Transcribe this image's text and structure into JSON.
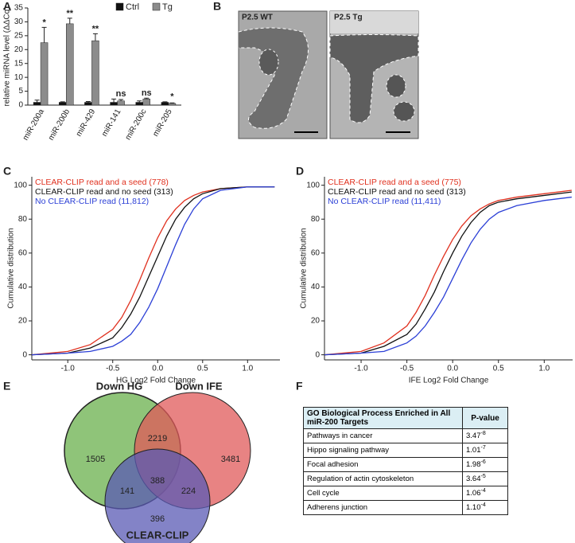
{
  "panel_labels": [
    "A",
    "B",
    "C",
    "D",
    "E",
    "F"
  ],
  "chart_data": [
    {
      "type": "bar",
      "ylabel": "relative miRNA level (ΔΔCq)",
      "categories": [
        "miR-200a",
        "miR-200b",
        "miR-429",
        "miR-141",
        "miR-200c",
        "miR-205"
      ],
      "series": [
        {
          "name": "Ctrl",
          "color": "#111111",
          "values": [
            1,
            1,
            1,
            1,
            1,
            1
          ],
          "errors": [
            0.8,
            0.2,
            0.3,
            1.2,
            0.5,
            0.2
          ]
        },
        {
          "name": "Tg",
          "color": "#8c8c8c",
          "values": [
            22.5,
            29.3,
            23.2,
            1.5,
            2.2,
            0.6
          ],
          "errors": [
            5.5,
            2,
            2.5,
            0.5,
            0.3,
            0.2
          ]
        }
      ],
      "annotations": [
        "*",
        "**",
        "**",
        "ns",
        "ns",
        "*"
      ],
      "ylim": [
        0,
        35
      ],
      "yticks": [
        0,
        5,
        10,
        15,
        20,
        25,
        30,
        35
      ]
    },
    {
      "type": "line",
      "xlabel": "HG Log2 Fold Change",
      "ylabel": "Cumulative distribution",
      "x": [
        -1.4,
        -1.0,
        -0.75,
        -0.5,
        -0.4,
        -0.3,
        -0.2,
        -0.1,
        0,
        0.1,
        0.2,
        0.3,
        0.4,
        0.5,
        0.7,
        1.0,
        1.3
      ],
      "series": [
        {
          "name": "CLEAR-CLIP read and a seed (778)",
          "color": "#e0301e",
          "values": [
            0,
            2,
            6,
            15,
            22,
            32,
            44,
            57,
            69,
            79,
            86,
            91,
            94,
            96,
            98,
            99,
            99
          ]
        },
        {
          "name": "CLEAR-CLIP read and no seed (313)",
          "color": "#111111",
          "values": [
            0,
            1,
            4,
            10,
            16,
            24,
            34,
            46,
            58,
            70,
            80,
            87,
            92,
            95,
            98,
            99,
            99
          ]
        },
        {
          "name": "No CLEAR-CLIP read (11,812)",
          "color": "#2b3fd6",
          "values": [
            0,
            1,
            2,
            5,
            8,
            12,
            19,
            28,
            39,
            52,
            65,
            77,
            86,
            92,
            97,
            99,
            99
          ]
        }
      ],
      "xlim": [
        -1.4,
        1.36
      ],
      "xticks": [
        {
          "value": -1,
          "label": "-1.0"
        },
        -0.5,
        {
          "value": 0,
          "label": "0.0"
        },
        0.5,
        {
          "value": 1,
          "label": "1.0"
        }
      ],
      "ylim": [
        -3,
        105
      ],
      "yticks": [
        0,
        20,
        40,
        60,
        80,
        100
      ]
    },
    {
      "type": "line",
      "xlabel": "IFE Log2 Fold Change",
      "ylabel": "Cumulative distribution",
      "x": [
        -1.4,
        -1.0,
        -0.75,
        -0.5,
        -0.4,
        -0.3,
        -0.2,
        -0.1,
        0,
        0.1,
        0.2,
        0.3,
        0.4,
        0.5,
        0.7,
        1.0,
        1.3
      ],
      "series": [
        {
          "name": "CLEAR-CLIP read and a seed (775)",
          "color": "#e0301e",
          "values": [
            0,
            2,
            7,
            17,
            25,
            35,
            47,
            58,
            68,
            76,
            82,
            86,
            89,
            91,
            93,
            95,
            97
          ]
        },
        {
          "name": "CLEAR-CLIP read and no seed (313)",
          "color": "#111111",
          "values": [
            0,
            1,
            5,
            12,
            18,
            27,
            37,
            49,
            60,
            70,
            78,
            84,
            88,
            90,
            92,
            94,
            96
          ]
        },
        {
          "name": "No CLEAR-CLIP read (11,411)",
          "color": "#2b3fd6",
          "values": [
            0,
            1,
            2,
            7,
            11,
            17,
            25,
            34,
            45,
            56,
            66,
            74,
            80,
            84,
            88,
            91,
            93
          ]
        }
      ],
      "xlim": [
        -1.4,
        1.31
      ],
      "xticks": [
        {
          "value": -1,
          "label": "-1.0"
        },
        -0.5,
        {
          "value": 0,
          "label": "0.0"
        },
        0.5,
        {
          "value": 1,
          "label": "1.0"
        }
      ],
      "ylim": [
        -3,
        105
      ],
      "yticks": [
        0,
        20,
        40,
        60,
        80,
        100
      ]
    }
  ],
  "images": [
    {
      "label": "P2.5 WT"
    },
    {
      "label": "P2.5 Tg"
    }
  ],
  "venn": {
    "sets": [
      "Down HG",
      "Down IFE",
      "CLEAR-CLIP"
    ],
    "regions": [
      1505,
      2219,
      3481,
      388,
      141,
      224,
      396
    ]
  },
  "table": {
    "header": [
      "GO Biological Process Enriched in All miR-200 Targets",
      "P-value"
    ],
    "rows": [
      [
        "Pathways in cancer",
        "3.47",
        "-8"
      ],
      [
        "Hippo signaling pathway",
        "1.01",
        "-7"
      ],
      [
        "Focal adhesion",
        "1.98",
        "-6"
      ],
      [
        "Regulation of actin cytoskeleton",
        "3.64",
        "-5"
      ],
      [
        "Cell cycle",
        "1.06",
        "-4"
      ],
      [
        "Adherens junction",
        "1.10",
        "-4"
      ]
    ]
  }
}
